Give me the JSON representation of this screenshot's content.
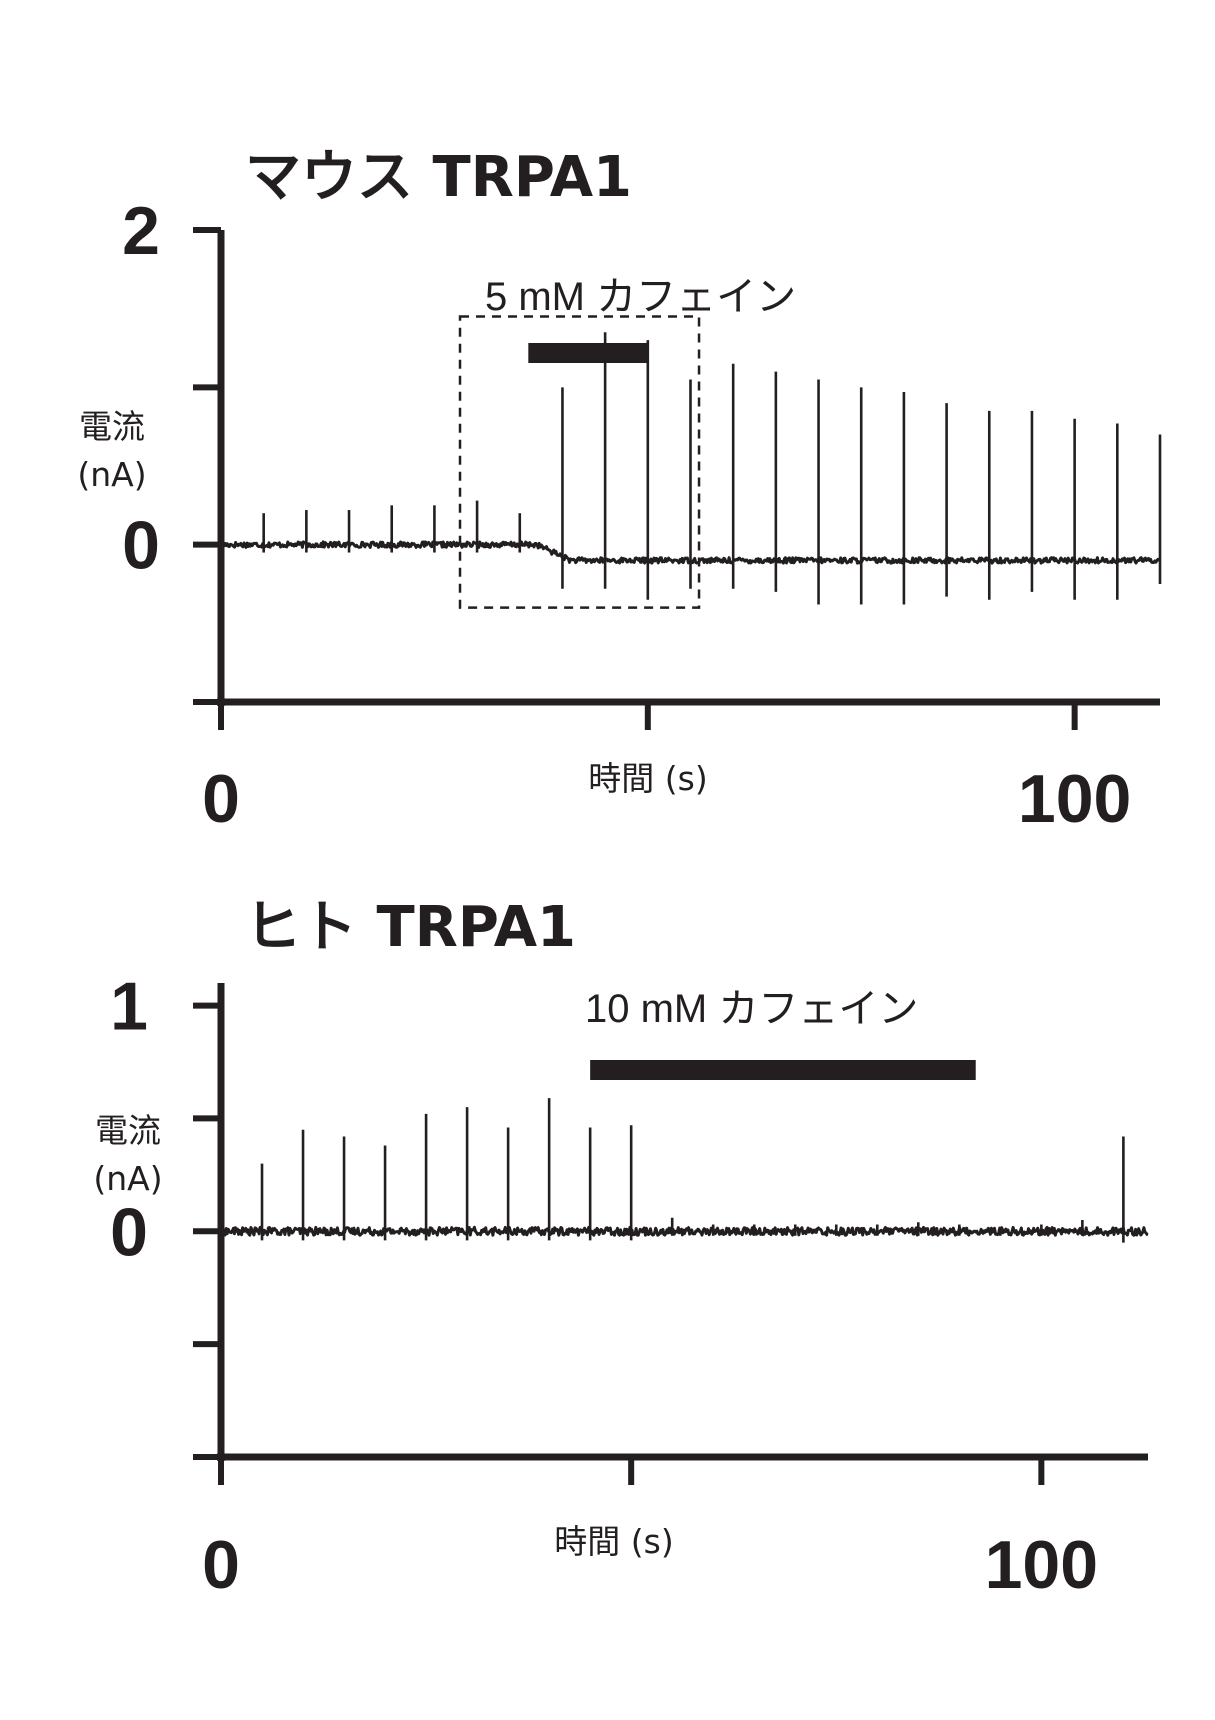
{
  "chart_data": [
    {
      "type": "line",
      "title": "マウス TRPA1",
      "xlabel": "時間 (s)",
      "ylabel": [
        "電流",
        "(nA)"
      ],
      "xlim": [
        0,
        110
      ],
      "ylim": [
        -1,
        2
      ],
      "x_ticks": [
        0,
        50,
        100
      ],
      "x_tick_labels": [
        "0",
        "",
        "100"
      ],
      "y_ticks": [
        -1,
        0,
        1,
        2
      ],
      "y_tick_labels": [
        "",
        "0",
        "",
        "2"
      ],
      "stimulus": {
        "label": "5 mM カフェイン",
        "start": 36,
        "end": 50
      },
      "inset_box": {
        "x": [
          28,
          56
        ],
        "y": [
          -0.4,
          1.45
        ]
      },
      "baseline_before": 0.0,
      "baseline_after": -0.1,
      "baseline_shift_at": 40,
      "spike_times": [
        5,
        10,
        15,
        20,
        25,
        30,
        35,
        40,
        45,
        50,
        55,
        60,
        65,
        70,
        75,
        80,
        85,
        90,
        95,
        100,
        105,
        110
      ],
      "spike_peaks": [
        0.2,
        0.22,
        0.22,
        0.25,
        0.25,
        0.28,
        0.2,
        1.0,
        1.35,
        1.3,
        1.05,
        1.15,
        1.1,
        1.05,
        1.0,
        0.97,
        0.9,
        0.85,
        0.85,
        0.8,
        0.77,
        0.7
      ],
      "spike_troughs": [
        -0.05,
        -0.05,
        -0.05,
        -0.05,
        -0.05,
        -0.05,
        -0.05,
        -0.28,
        -0.28,
        -0.35,
        -0.28,
        -0.28,
        -0.3,
        -0.38,
        -0.38,
        -0.38,
        -0.33,
        -0.35,
        -0.3,
        -0.35,
        -0.35,
        -0.25
      ]
    },
    {
      "type": "line",
      "title": "ヒト TRPA1",
      "xlabel": "時間 (s)",
      "ylabel": [
        "電流",
        "(nA)"
      ],
      "xlim": [
        0,
        113
      ],
      "ylim": [
        -1,
        1.1
      ],
      "x_ticks": [
        0,
        50,
        100
      ],
      "x_tick_labels": [
        "0",
        "",
        "100"
      ],
      "y_ticks": [
        -1,
        -0.5,
        0,
        0.5,
        1
      ],
      "y_tick_labels": [
        "",
        "",
        "0",
        "",
        "1"
      ],
      "stimulus": {
        "label": "10 mM カフェイン",
        "start": 45,
        "end": 92
      },
      "baseline_before": 0.0,
      "baseline_after": 0.0,
      "spike_times": [
        5,
        10,
        15,
        20,
        25,
        30,
        35,
        40,
        45,
        50,
        55,
        60,
        65,
        70,
        75,
        80,
        85,
        90,
        95,
        100,
        105,
        110
      ],
      "spike_peaks": [
        0.3,
        0.45,
        0.42,
        0.38,
        0.52,
        0.55,
        0.46,
        0.59,
        0.46,
        0.47,
        0.06,
        0.03,
        0.03,
        0.03,
        0.03,
        0.03,
        0.04,
        0.03,
        0.02,
        0.03,
        0.05,
        0.42
      ],
      "spike_troughs": [
        -0.04,
        -0.04,
        -0.04,
        -0.04,
        -0.04,
        -0.04,
        -0.04,
        -0.04,
        -0.04,
        -0.04,
        -0.02,
        -0.02,
        -0.02,
        -0.02,
        -0.02,
        -0.02,
        -0.02,
        -0.02,
        -0.02,
        -0.02,
        -0.02,
        -0.05
      ]
    }
  ]
}
